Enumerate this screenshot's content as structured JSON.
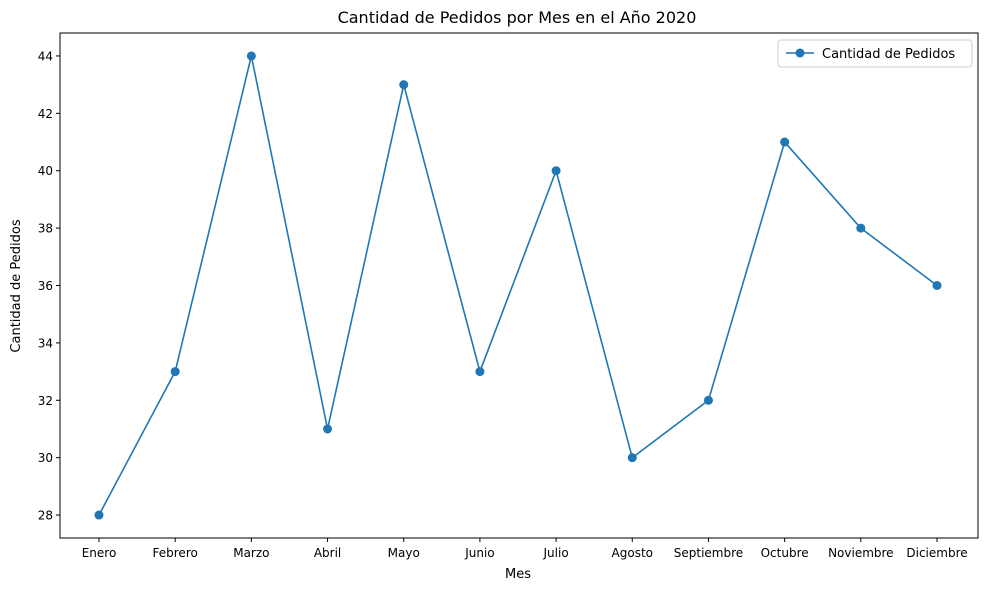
{
  "colors": {
    "series": "#1f77b4",
    "axis": "#000000",
    "background": "#ffffff"
  },
  "chart_data": {
    "type": "line",
    "title": "Cantidad de Pedidos por Mes en el Año 2020",
    "xlabel": "Mes",
    "ylabel": "Cantidad de Pedidos",
    "categories": [
      "Enero",
      "Febrero",
      "Marzo",
      "Abril",
      "Mayo",
      "Junio",
      "Julio",
      "Agosto",
      "Septiembre",
      "Octubre",
      "Noviembre",
      "Diciembre"
    ],
    "series": [
      {
        "name": "Cantidad de Pedidos",
        "values": [
          28,
          33,
          44,
          31,
          43,
          33,
          40,
          30,
          32,
          41,
          38,
          36
        ],
        "marker": "circle"
      }
    ],
    "ylim": [
      27.2,
      44.8
    ],
    "yticks": [
      28,
      30,
      32,
      34,
      36,
      38,
      40,
      42,
      44
    ],
    "grid": false,
    "legend": {
      "position": "top-right",
      "entries": [
        "Cantidad de Pedidos"
      ]
    }
  }
}
